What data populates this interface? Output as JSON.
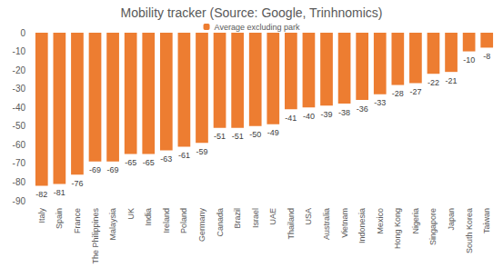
{
  "chart_data": {
    "type": "bar",
    "title": "Mobility tracker (Source: Google, Trinhnomics)",
    "categories": [
      "Italy",
      "Spain",
      "France",
      "The Philippines",
      "Malaysia",
      "UK",
      "India",
      "Ireland",
      "Poland",
      "Germany",
      "Canada",
      "Brazil",
      "Israel",
      "UAE",
      "Thailand",
      "USA",
      "Australia",
      "Vietnam",
      "Indonesia",
      "Mexico",
      "Hong Kong",
      "Nigeria",
      "Singapore",
      "Japan",
      "South Korea",
      "Taiwan"
    ],
    "series": [
      {
        "name": "Average excluding park",
        "color": "#ed7d31",
        "values": [
          -82,
          -81,
          -76,
          -69,
          -69,
          -65,
          -65,
          -63,
          -61,
          -59,
          -51,
          -51,
          -50,
          -49,
          -41,
          -40,
          -39,
          -38,
          -36,
          -33,
          -28,
          -27,
          -22,
          -21,
          -10,
          -8
        ]
      }
    ],
    "ylim": [
      -90,
      0
    ],
    "yticks": [
      -90,
      -80,
      -70,
      -60,
      -50,
      -40,
      -30,
      -20,
      -10,
      0
    ],
    "grid": false,
    "legend": "top",
    "data_labels": true
  }
}
